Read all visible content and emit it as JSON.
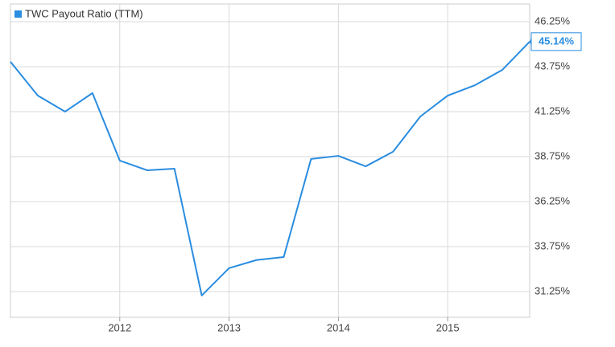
{
  "chart_data": {
    "type": "line",
    "x": [
      2011,
      2011.25,
      2011.5,
      2011.75,
      2012,
      2012.25,
      2012.5,
      2012.75,
      2013,
      2013.25,
      2013.5,
      2013.75,
      2014,
      2014.25,
      2014.5,
      2014.75,
      2015,
      2015.25,
      2015.5,
      2015.75
    ],
    "series": [
      {
        "name": "TWC Payout Ratio (TTM)",
        "color": "#2a8de0",
        "values": [
          44.02,
          42.14,
          41.25,
          42.28,
          38.53,
          37.99,
          38.08,
          31.03,
          32.55,
          33.0,
          33.17,
          38.62,
          38.79,
          38.21,
          39.02,
          40.98,
          42.14,
          42.72,
          43.57,
          45.14
        ],
        "value_labels": [
          null,
          null,
          null,
          null,
          null,
          null,
          null,
          null,
          null,
          null,
          null,
          null,
          null,
          null,
          null,
          null,
          null,
          null,
          null,
          "45.14%"
        ]
      }
    ],
    "xlim": [
      2011,
      2015.75
    ],
    "xticks": [
      2012,
      2013,
      2014,
      2015
    ],
    "ylim": [
      29.82,
      47.23
    ],
    "yticks": [
      {
        "value": 31.25,
        "label": "31.25%"
      },
      {
        "value": 33.75,
        "label": "33.75%"
      },
      {
        "value": 36.25,
        "label": "36.25%"
      },
      {
        "value": 38.75,
        "label": "38.75%"
      },
      {
        "value": 41.25,
        "label": "41.25%"
      },
      {
        "value": 43.75,
        "label": "43.75%"
      },
      {
        "value": 46.25,
        "label": "46.25%"
      }
    ],
    "grid": true,
    "legend": "top-left"
  }
}
